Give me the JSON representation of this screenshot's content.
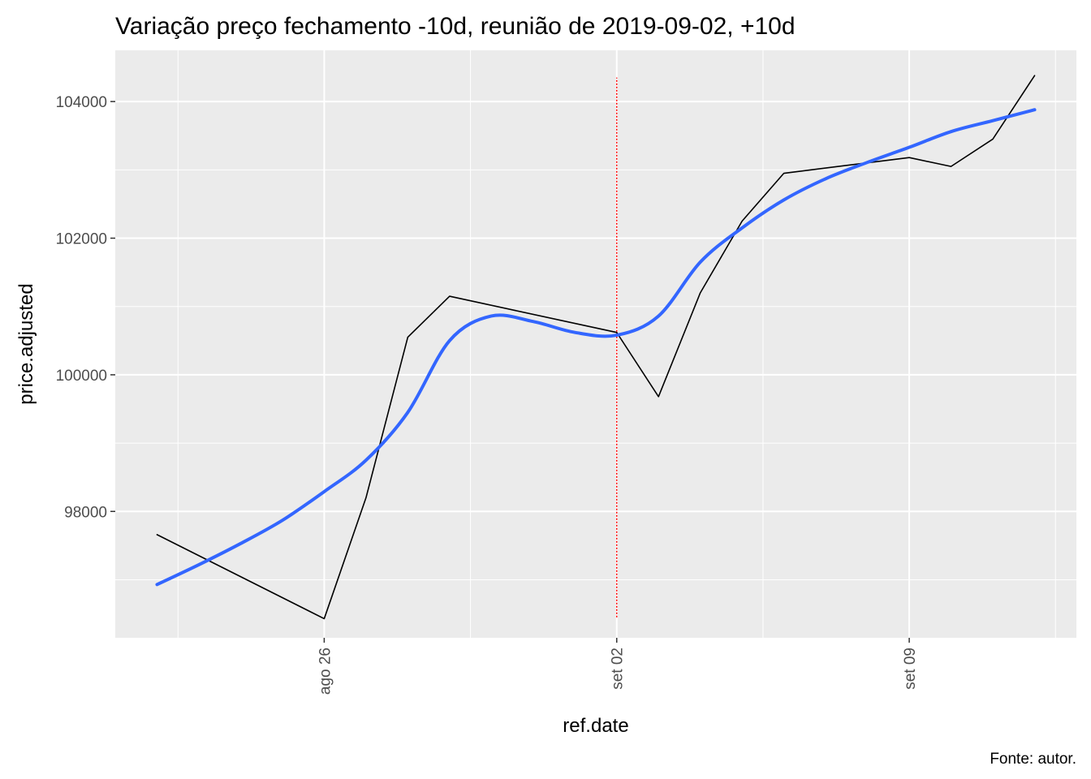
{
  "chart_data": {
    "type": "line",
    "title": "Variação preço fechamento -10d, reunião de 2019-09-02, +10d",
    "xlabel": "ref.date",
    "ylabel": "price.adjusted",
    "caption": "Fonte: autor.",
    "x_ticks": [
      {
        "date": "2019-08-26",
        "label": "ago 26"
      },
      {
        "date": "2019-09-02",
        "label": "set 02"
      },
      {
        "date": "2019-09-09",
        "label": "set 09"
      }
    ],
    "y_ticks": [
      98000,
      100000,
      102000,
      104000
    ],
    "xlim": [
      "2019-08-21",
      "2019-09-13"
    ],
    "ylim": [
      96150,
      104750
    ],
    "grid": true,
    "vline": {
      "date": "2019-09-02",
      "color": "#ff0000",
      "style": "dotted",
      "ymin": 96450,
      "ymax": 104350
    },
    "series": [
      {
        "color": "#000000",
        "points": [
          {
            "x": "2019-08-22",
            "y": 97660
          },
          {
            "x": "2019-08-26",
            "y": 96430
          },
          {
            "x": "2019-08-27",
            "y": 98200
          },
          {
            "x": "2019-08-28",
            "y": 100550
          },
          {
            "x": "2019-08-29",
            "y": 101150
          },
          {
            "x": "2019-09-02",
            "y": 100620
          },
          {
            "x": "2019-09-03",
            "y": 99680
          },
          {
            "x": "2019-09-04",
            "y": 101200
          },
          {
            "x": "2019-09-05",
            "y": 102250
          },
          {
            "x": "2019-09-06",
            "y": 102950
          },
          {
            "x": "2019-09-09",
            "y": 103180
          },
          {
            "x": "2019-09-10",
            "y": 103050
          },
          {
            "x": "2019-09-11",
            "y": 103450
          },
          {
            "x": "2019-09-12",
            "y": 104380
          }
        ]
      },
      {
        "color": "#3366ff",
        "smooth": true,
        "points": [
          {
            "x": "2019-08-22",
            "y": 96930
          },
          {
            "x": "2019-08-23",
            "y": 97220
          },
          {
            "x": "2019-08-24",
            "y": 97530
          },
          {
            "x": "2019-08-25",
            "y": 97870
          },
          {
            "x": "2019-08-26",
            "y": 98290
          },
          {
            "x": "2019-08-27",
            "y": 98750
          },
          {
            "x": "2019-08-28",
            "y": 99450
          },
          {
            "x": "2019-08-29",
            "y": 100500
          },
          {
            "x": "2019-08-30",
            "y": 100860
          },
          {
            "x": "2019-08-31",
            "y": 100780
          },
          {
            "x": "2019-09-01",
            "y": 100620
          },
          {
            "x": "2019-09-02",
            "y": 100580
          },
          {
            "x": "2019-09-03",
            "y": 100860
          },
          {
            "x": "2019-09-04",
            "y": 101650
          },
          {
            "x": "2019-09-05",
            "y": 102150
          },
          {
            "x": "2019-09-06",
            "y": 102560
          },
          {
            "x": "2019-09-07",
            "y": 102870
          },
          {
            "x": "2019-09-08",
            "y": 103110
          },
          {
            "x": "2019-09-09",
            "y": 103330
          },
          {
            "x": "2019-09-10",
            "y": 103560
          },
          {
            "x": "2019-09-11",
            "y": 103720
          },
          {
            "x": "2019-09-12",
            "y": 103880
          }
        ]
      }
    ]
  }
}
